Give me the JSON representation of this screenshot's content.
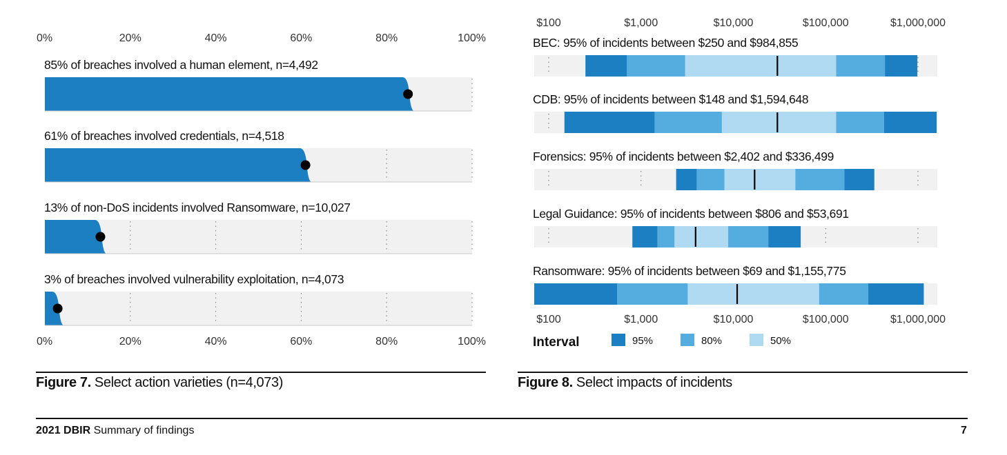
{
  "figure7": {
    "caption_bold": "Figure 7.",
    "caption_text": " Select action varieties (n=4,073)",
    "ticks": [
      "0%",
      "20%",
      "40%",
      "60%",
      "80%",
      "100%"
    ],
    "chart_data": {
      "type": "bar",
      "orientation": "horizontal",
      "xlim": [
        0,
        100
      ],
      "unit": "%",
      "categories": [
        "85% of breaches involved a human element, n=4,492",
        "61% of breaches involved credentials, n=4,518",
        "13% of non-DoS incidents involved Ransomware, n=10,027",
        "3% of breaches involved vulnerability exploitation, n=4,073"
      ],
      "values": [
        85,
        61,
        13,
        3
      ],
      "grid": true
    }
  },
  "figure8": {
    "caption_bold": "Figure 8.",
    "caption_text": " Select impacts of incidents",
    "ticks": [
      "$100",
      "$1,000",
      "$10,000",
      "$100,000",
      "$1,000,000"
    ],
    "legend": {
      "title": "Interval",
      "items": [
        {
          "label": "95%",
          "color": "#1b7fc2"
        },
        {
          "label": "80%",
          "color": "#55acdf"
        },
        {
          "label": "50%",
          "color": "#b0d9f2"
        }
      ]
    },
    "chart_data": {
      "type": "interval",
      "x_scale": "log",
      "xlim": [
        100,
        1000000
      ],
      "series": [
        {
          "label": "BEC: 95% of incidents between $250 and $984,855",
          "intervals": {
            "95": [
              250,
              984855
            ],
            "80": [
              700,
              440000
            ],
            "50": [
              3000,
              130000
            ]
          },
          "median": 30000
        },
        {
          "label": "CDB: 95% of incidents between $148 and $1,594,648",
          "intervals": {
            "95": [
              148,
              1594648
            ],
            "80": [
              1400,
              430000
            ],
            "50": [
              7500,
              130000
            ]
          },
          "median": 30000
        },
        {
          "label": "Forensics: 95% of incidents between $2,402 and $336,499",
          "intervals": {
            "95": [
              2402,
              336499
            ],
            "80": [
              4000,
              160000
            ],
            "50": [
              8000,
              47000
            ]
          },
          "median": 17000
        },
        {
          "label": "Legal Guidance: 95% of incidents between $806 and $53,691",
          "intervals": {
            "95": [
              806,
              53691
            ],
            "80": [
              1500,
              24000
            ],
            "50": [
              2300,
              8800
            ]
          },
          "median": 3900
        },
        {
          "label": "Ransomware: 95% of incidents between $69 and $1,155,775",
          "intervals": {
            "95": [
              69,
              1155775
            ],
            "80": [
              550,
              290000
            ],
            "50": [
              3200,
              85000
            ]
          },
          "median": 11000
        }
      ]
    }
  },
  "footer": {
    "bold": "2021 DBIR",
    "text": " Summary of findings",
    "page": "7"
  }
}
